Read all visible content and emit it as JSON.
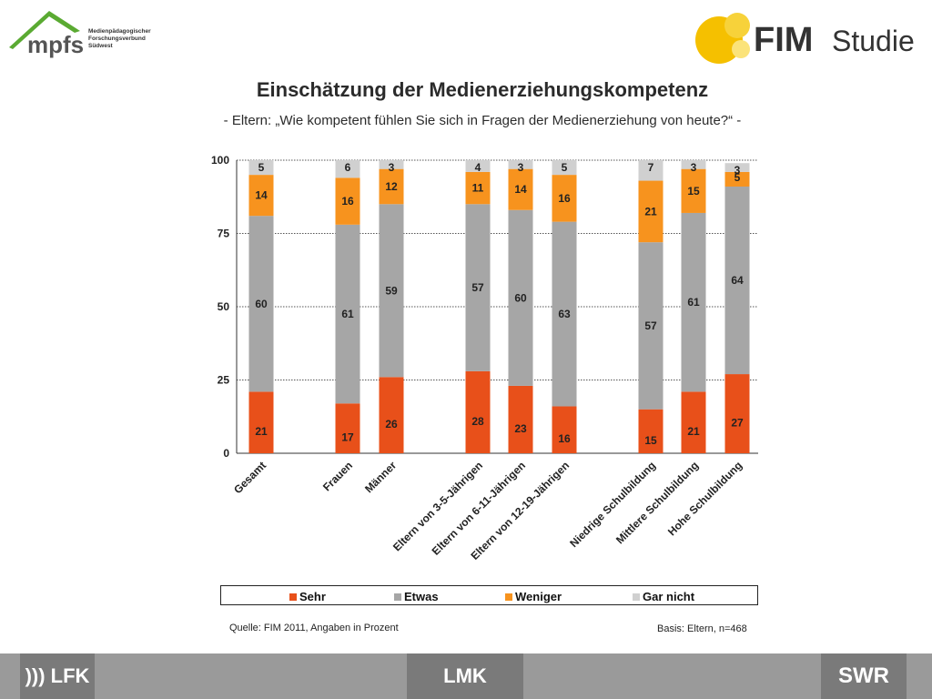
{
  "header": {
    "mpfs_logo_text": "mpfs",
    "mpfs_logo_sub": [
      "Medienpädagogischer",
      "Forschungsverbund",
      "Südwest"
    ],
    "fim_logo_text": "FIM",
    "fim_logo_sub": "Studie"
  },
  "footer": {
    "lfk": "))) LFK",
    "lmk": "LMK",
    "swr": "SWR"
  },
  "colors": {
    "sehr": "#e8501a",
    "etwas": "#a6a6a6",
    "weniger": "#f7931e",
    "gar_nicht": "#d0d0d0"
  },
  "chart_data": {
    "type": "bar",
    "stacked": true,
    "title": "Einschätzung der Medienerziehungskompetenz",
    "subtitle": "- Eltern: „Wie kompetent fühlen Sie sich in Fragen der Medienerziehung von heute?“ -",
    "ylim": [
      0,
      100
    ],
    "yticks": [
      0,
      25,
      50,
      75,
      100
    ],
    "grid": true,
    "legend_position": "bottom",
    "categories": [
      "Gesamt",
      "Frauen",
      "Männer",
      "Eltern von 3-5-Jährigen",
      "Eltern von 6-11-Jährigen",
      "Eltern von 12-19-Jährigen",
      "Niedrige Schulbildung",
      "Mittlere Schulbildung",
      "Hohe Schulbildung"
    ],
    "series": [
      {
        "name": "Sehr",
        "values": [
          21,
          17,
          26,
          28,
          23,
          16,
          15,
          21,
          27
        ]
      },
      {
        "name": "Etwas",
        "values": [
          60,
          61,
          59,
          57,
          60,
          63,
          57,
          61,
          64
        ]
      },
      {
        "name": "Weniger",
        "values": [
          14,
          16,
          12,
          11,
          14,
          16,
          21,
          15,
          5
        ]
      },
      {
        "name": "Gar nicht",
        "values": [
          5,
          6,
          3,
          4,
          3,
          5,
          7,
          3,
          3
        ]
      }
    ],
    "source": "Quelle: FIM 2011,  Angaben in Prozent",
    "basis": "Basis: Eltern, n=468"
  }
}
